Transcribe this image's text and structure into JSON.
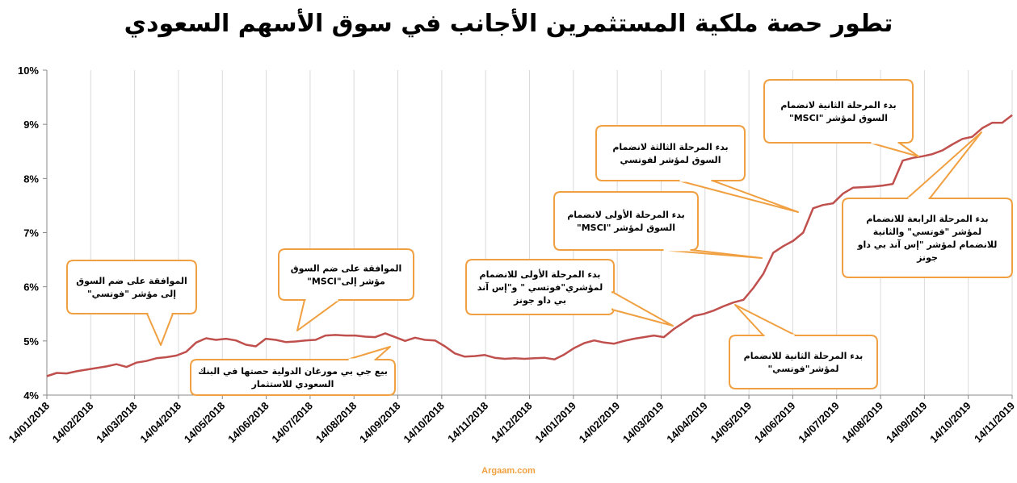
{
  "title": "تطور حصة ملكية المستثمرين الأجانب في سوق الأسهم السعودي",
  "source": "Argaam.com",
  "colors": {
    "line": "#c0504d",
    "callout_border": "#f0a040",
    "axis": "#888888"
  },
  "chart_data": {
    "type": "line",
    "title": "تطور حصة ملكية المستثمرين الأجانب في سوق الأسهم السعودي",
    "xlabel": "",
    "ylabel": "",
    "ylim": [
      4,
      10
    ],
    "y_tick_labels": [
      "4%",
      "5%",
      "6%",
      "7%",
      "8%",
      "9%",
      "10%"
    ],
    "x_tick_labels": [
      "14/01/2018",
      "14/02/2018",
      "14/03/2018",
      "14/04/2018",
      "14/05/2018",
      "14/06/2018",
      "14/07/2018",
      "14/08/2018",
      "14/09/2018",
      "14/10/2018",
      "14/11/2018",
      "14/12/2018",
      "14/01/2019",
      "14/02/2019",
      "14/03/2019",
      "14/04/2019",
      "14/05/2019",
      "14/06/2019",
      "14/07/2019",
      "14/08/2019",
      "14/09/2019",
      "14/10/2019",
      "14/11/2019"
    ],
    "grid": "vertical",
    "series": [
      {
        "values": [
          4.35,
          4.41,
          4.4,
          4.44,
          4.47,
          4.5,
          4.53,
          4.57,
          4.52,
          4.6,
          4.63,
          4.68,
          4.7,
          4.73,
          4.8,
          4.97,
          5.05,
          5.02,
          5.04,
          5.01,
          4.93,
          4.9,
          5.04,
          5.02,
          4.98,
          4.99,
          5.01,
          5.02,
          5.1,
          5.11,
          5.1,
          5.1,
          5.08,
          5.07,
          5.14,
          5.07,
          5.0,
          5.06,
          5.02,
          5.01,
          4.9,
          4.77,
          4.71,
          4.72,
          4.74,
          4.69,
          4.67,
          4.68,
          4.67,
          4.68,
          4.69,
          4.66,
          4.75,
          4.87,
          4.96,
          5.01,
          4.97,
          4.95,
          5.0,
          5.04,
          5.07,
          5.1,
          5.07,
          5.22,
          5.34,
          5.46,
          5.5,
          5.56,
          5.64,
          5.71,
          5.76,
          5.98,
          6.24,
          6.63,
          6.75,
          6.85,
          7.0,
          7.45,
          7.51,
          7.54,
          7.72,
          7.83,
          7.84,
          7.85,
          7.87,
          7.9,
          8.33,
          8.38,
          8.41,
          8.45,
          8.52,
          8.63,
          8.73,
          8.77,
          8.93,
          9.03,
          9.03,
          9.17
        ]
      }
    ],
    "annotations": [
      {
        "lines": [
          "الموافقة على ضم السوق",
          "إلى مؤشر  \"فوتسي\""
        ]
      },
      {
        "lines": [
          "الموافقة على ضم السوق",
          "مؤشر إلى\"MSCI\""
        ]
      },
      {
        "lines": [
          "بيع جي بي مورغان الدولية حصتها في البنك",
          "السعودي للاستثمار"
        ]
      },
      {
        "lines": [
          "بدء المرحلة الأولى للانضمام",
          "لمؤشري\"فوتسي \" و\"إس آند",
          "بي داو جونز"
        ]
      },
      {
        "lines": [
          "بدء المرحلة الأولى لانضمام",
          "السوق لمؤشر \"MSCI\""
        ]
      },
      {
        "lines": [
          "بدء المرحلة الثانية للانضمام",
          "لمؤشر\"فوتسي\""
        ]
      },
      {
        "lines": [
          "بدء المرحلة الثالثة لانضمام",
          "السوق لمؤشر لفوتسي"
        ]
      },
      {
        "lines": [
          "بدء المرحلة الثانية لانضمام",
          "السوق لمؤشر \"MSCI\""
        ]
      },
      {
        "lines": [
          "بدء المرحلة الرابعة للانضمام",
          "لمؤشر \"فوتسي\" والثانية",
          "للانضمام لمؤشر \"إس آند بي داو",
          "جونز"
        ]
      }
    ]
  }
}
